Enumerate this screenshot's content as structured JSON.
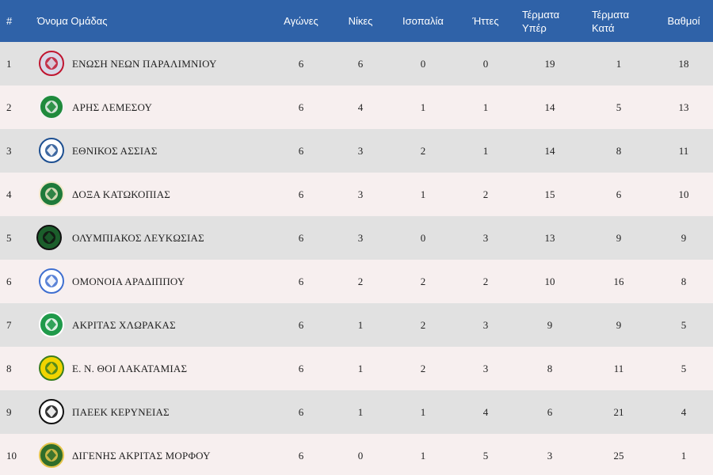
{
  "columns": {
    "pos": "#",
    "team": "Όνομα Ομάδας",
    "played": "Αγώνες",
    "wins": "Νίκες",
    "draws": "Ισοπαλία",
    "losses": "Ήττες",
    "gf_line1": "Τέρματα",
    "gf_line2": "Υπέρ",
    "ga_line1": "Τέρματα",
    "ga_line2": "Κατά",
    "points": "Βαθμοί"
  },
  "rows": [
    {
      "pos": "1",
      "team": "ΕΝΩΣΗ ΝΕΩΝ ΠΑΡΑΛΙΜΝΙΟΥ",
      "played": "6",
      "wins": "6",
      "draws": "0",
      "losses": "0",
      "gf": "19",
      "ga": "1",
      "points": "18",
      "logo": "enp-crest-icon"
    },
    {
      "pos": "2",
      "team": "ΑΡΗΣ ΛΕΜΕΣΟΥ",
      "played": "6",
      "wins": "4",
      "draws": "1",
      "losses": "1",
      "gf": "14",
      "ga": "5",
      "points": "13",
      "logo": "aris-crest-icon"
    },
    {
      "pos": "3",
      "team": "ΕΘΝΙΚΟΣ ΑΣΣΙΑΣ",
      "played": "6",
      "wins": "3",
      "draws": "2",
      "losses": "1",
      "gf": "14",
      "ga": "8",
      "points": "11",
      "logo": "ethnikos-crest-icon"
    },
    {
      "pos": "4",
      "team": "ΔΟΞΑ ΚΑΤΩΚΟΠΙΑΣ",
      "played": "6",
      "wins": "3",
      "draws": "1",
      "losses": "2",
      "gf": "15",
      "ga": "6",
      "points": "10",
      "logo": "doxa-crest-icon"
    },
    {
      "pos": "5",
      "team": "ΟΛΥΜΠΙΑΚΟΣ ΛΕΥΚΩΣΙΑΣ",
      "played": "6",
      "wins": "3",
      "draws": "0",
      "losses": "3",
      "gf": "13",
      "ga": "9",
      "points": "9",
      "logo": "olympiakos-crest-icon"
    },
    {
      "pos": "6",
      "team": "ΟΜΟΝΟΙΑ ΑΡΑΔΙΠΠΟΥ",
      "played": "6",
      "wins": "2",
      "draws": "2",
      "losses": "2",
      "gf": "10",
      "ga": "16",
      "points": "8",
      "logo": "omonoia-crest-icon"
    },
    {
      "pos": "7",
      "team": "ΑΚΡΙΤΑΣ ΧΛΩΡΑΚΑΣ",
      "played": "6",
      "wins": "1",
      "draws": "2",
      "losses": "3",
      "gf": "9",
      "ga": "9",
      "points": "5",
      "logo": "akritas-crest-icon"
    },
    {
      "pos": "8",
      "team": "Ε. Ν. ΘΟΙ ΛΑΚΑΤΑΜΙΑΣ",
      "played": "6",
      "wins": "1",
      "draws": "2",
      "losses": "3",
      "gf": "8",
      "ga": "11",
      "points": "5",
      "logo": "thoi-crest-icon"
    },
    {
      "pos": "9",
      "team": "ΠΑΕΕΚ ΚΕΡΥΝΕΙΑΣ",
      "played": "6",
      "wins": "1",
      "draws": "1",
      "losses": "4",
      "gf": "6",
      "ga": "21",
      "points": "4",
      "logo": "paeek-crest-icon"
    },
    {
      "pos": "10",
      "team": "ΔΙΓΕΝΗΣ ΑΚΡΙΤΑΣ ΜΟΡΦΟΥ",
      "played": "6",
      "wins": "0",
      "draws": "1",
      "losses": "5",
      "gf": "3",
      "ga": "25",
      "points": "1",
      "logo": "digenis-crest-icon"
    }
  ],
  "colors": {
    "header_bg": "#2f62a8",
    "row_odd": "#e1e1e1",
    "row_even": "#f7efef"
  }
}
